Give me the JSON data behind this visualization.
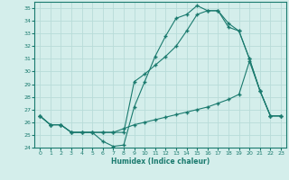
{
  "line1_x": [
    0,
    1,
    2,
    3,
    4,
    5,
    6,
    7,
    8,
    9,
    10,
    11,
    12,
    13,
    14,
    15,
    16,
    17,
    18,
    19,
    20,
    21,
    22,
    23
  ],
  "line1_y": [
    26.5,
    25.8,
    25.8,
    25.2,
    25.2,
    25.2,
    24.5,
    24.1,
    24.2,
    27.2,
    29.2,
    31.2,
    32.8,
    34.2,
    34.5,
    35.2,
    34.8,
    34.8,
    33.8,
    33.2,
    31.0,
    28.5,
    26.5,
    26.5
  ],
  "line2_x": [
    0,
    1,
    2,
    3,
    4,
    5,
    6,
    7,
    8,
    9,
    10,
    11,
    12,
    13,
    14,
    15,
    16,
    17,
    18,
    19,
    20,
    21,
    22,
    23
  ],
  "line2_y": [
    26.5,
    25.8,
    25.8,
    25.2,
    25.2,
    25.2,
    25.2,
    25.2,
    25.2,
    29.2,
    29.8,
    30.5,
    31.2,
    32.0,
    33.2,
    34.5,
    34.8,
    34.8,
    33.5,
    33.2,
    31.0,
    28.5,
    26.5,
    26.5
  ],
  "line3_x": [
    0,
    1,
    2,
    3,
    4,
    5,
    6,
    7,
    8,
    9,
    10,
    11,
    12,
    13,
    14,
    15,
    16,
    17,
    18,
    19,
    20,
    21,
    22,
    23
  ],
  "line3_y": [
    26.5,
    25.8,
    25.8,
    25.2,
    25.2,
    25.2,
    25.2,
    25.2,
    25.5,
    25.8,
    26.0,
    26.2,
    26.4,
    26.6,
    26.8,
    27.0,
    27.2,
    27.5,
    27.8,
    28.2,
    30.8,
    28.5,
    26.5,
    26.5
  ],
  "line_color": "#1a7a6e",
  "bg_color": "#d4eeeb",
  "grid_color": "#b8dcd8",
  "xlabel": "Humidex (Indice chaleur)",
  "ylim": [
    24,
    35.5
  ],
  "xlim": [
    -0.5,
    23.5
  ],
  "yticks": [
    24,
    25,
    26,
    27,
    28,
    29,
    30,
    31,
    32,
    33,
    34,
    35
  ],
  "xticks": [
    0,
    1,
    2,
    3,
    4,
    5,
    6,
    7,
    8,
    9,
    10,
    11,
    12,
    13,
    14,
    15,
    16,
    17,
    18,
    19,
    20,
    21,
    22,
    23
  ]
}
